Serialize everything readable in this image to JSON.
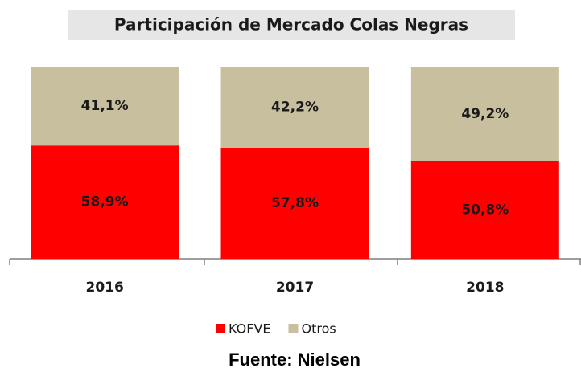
{
  "chart_data": {
    "type": "stacked_bar",
    "title": "Participación de Mercado Colas Negras",
    "categories": [
      "2016",
      "2017",
      "2018"
    ],
    "series": [
      {
        "name": "KOFVE",
        "color": "#ff0000",
        "values": [
          58.9,
          57.8,
          50.8
        ],
        "value_labels": [
          "58,9%",
          "57,8%",
          "50,8%"
        ]
      },
      {
        "name": "Otros",
        "color": "#c8bf9e",
        "values": [
          41.1,
          42.2,
          49.2
        ],
        "value_labels": [
          "41,1%",
          "42,2%",
          "49,2%"
        ]
      }
    ],
    "source": "Fuente: Nielsen"
  }
}
